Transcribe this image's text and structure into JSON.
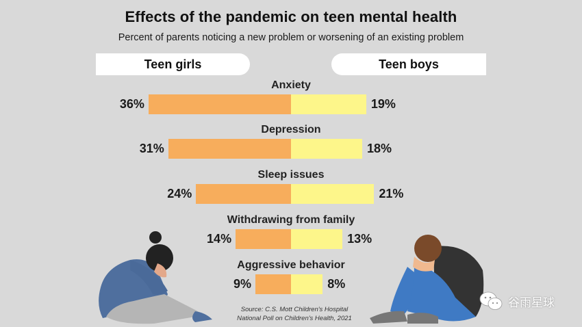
{
  "title": "Effects of the pandemic on teen mental health",
  "subtitle": "Percent of parents noticing a new problem or worsening of an existing problem",
  "legend": {
    "girls": "Teen girls",
    "boys": "Teen boys"
  },
  "colors": {
    "girls": "#f7ad5c",
    "boys": "#fdf68a",
    "background": "#d9d9d9"
  },
  "rows": [
    {
      "label": "Anxiety",
      "girls": "36%",
      "boys": "19%"
    },
    {
      "label": "Depression",
      "girls": "31%",
      "boys": "18%"
    },
    {
      "label": "Sleep issues",
      "girls": "24%",
      "boys": "21%"
    },
    {
      "label": "Withdrawing from family",
      "girls": "14%",
      "boys": "13%"
    },
    {
      "label": "Aggressive behavior",
      "girls": "9%",
      "boys": "8%"
    }
  ],
  "source": {
    "line1": "Source: C.S. Mott Children's Hospital",
    "line2": "National Poll on Children's Health, 2021"
  },
  "watermark": {
    "icon": "wechat-icon",
    "text": "谷雨星球"
  },
  "chart_data": {
    "type": "bar",
    "orientation": "horizontal-diverging",
    "title": "Effects of the pandemic on teen mental health",
    "subtitle": "Percent of parents noticing a new problem or worsening of an existing problem",
    "categories": [
      "Anxiety",
      "Depression",
      "Sleep issues",
      "Withdrawing from family",
      "Aggressive behavior"
    ],
    "series": [
      {
        "name": "Teen girls",
        "values": [
          36,
          31,
          24,
          14,
          9
        ],
        "color": "#f7ad5c"
      },
      {
        "name": "Teen boys",
        "values": [
          19,
          18,
          21,
          13,
          8
        ],
        "color": "#fdf68a"
      }
    ],
    "xlabel": "",
    "ylabel": "",
    "unit": "%",
    "grid": false,
    "legend_position": "top",
    "annotations": [
      "Source: C.S. Mott Children's Hospital National Poll on Children's Health, 2021"
    ]
  }
}
